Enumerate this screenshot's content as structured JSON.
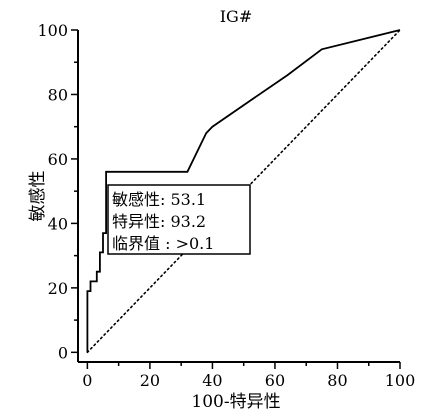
{
  "chart_data": {
    "type": "line",
    "title": "IG#",
    "xlabel": "100-特异性",
    "ylabel": "敏感性",
    "xlim": [
      -3,
      100
    ],
    "ylim": [
      -3,
      100
    ],
    "xticks": [
      0,
      20,
      40,
      60,
      80,
      100
    ],
    "yticks": [
      0,
      20,
      40,
      60,
      80,
      100
    ],
    "grid": false,
    "series": [
      {
        "style": "solid",
        "x": [
          0,
          0,
          1,
          1,
          3,
          3,
          4,
          4,
          5,
          5,
          6,
          6,
          10,
          32,
          38,
          40,
          52,
          64,
          75,
          100
        ],
        "y": [
          0,
          19,
          19,
          22,
          22,
          25,
          25,
          31,
          31,
          37,
          37,
          56,
          56,
          56,
          68,
          70,
          78,
          86,
          94,
          100
        ]
      },
      {
        "style": "dotted",
        "x": [
          0,
          100
        ],
        "y": [
          0,
          100
        ]
      }
    ],
    "annotation": {
      "lines": [
        "敏感性: 53.1",
        "特异性: 93.2",
        "临界值 : >0.1"
      ]
    }
  }
}
